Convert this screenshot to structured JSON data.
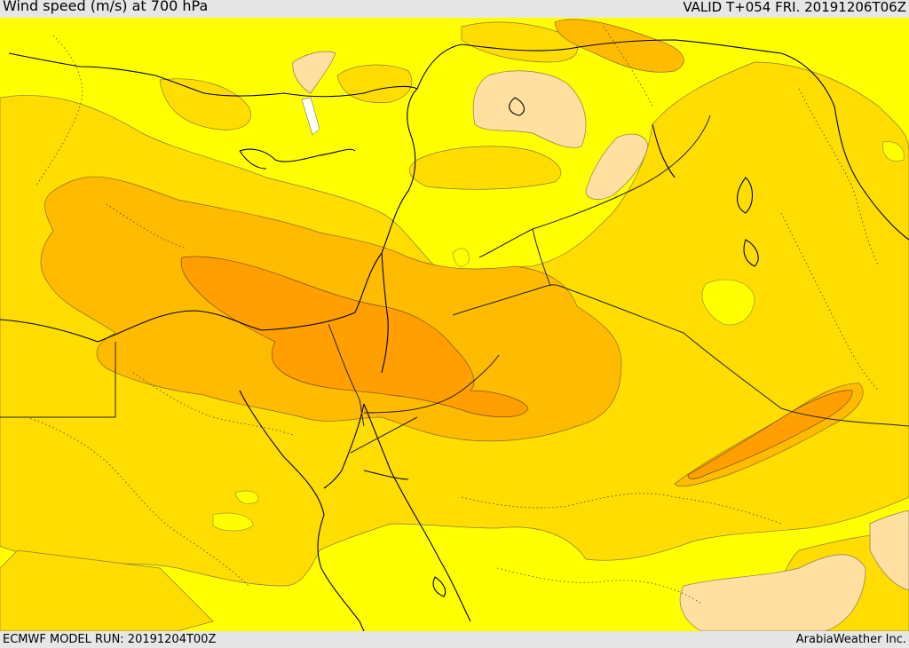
{
  "header": {
    "title": "Wind speed (m/s) at 700 hPa",
    "valid": "VALID T+054 FRI. 20191206T06Z"
  },
  "footer": {
    "model_run": "ECMWF MODEL RUN: 20191204T00Z",
    "brand": "ArabiaWeather Inc."
  },
  "colors": {
    "level_0_5": "#ffffff",
    "level_5_10": "#ffffff",
    "level_10_15": "#ffff00",
    "level_15_20": "#ffdd00",
    "level_20_25": "#ffbb00",
    "level_25_30": "#ff9f00",
    "light_patch": "#ffe0a0",
    "coast": "#000000",
    "border": "#333333"
  }
}
